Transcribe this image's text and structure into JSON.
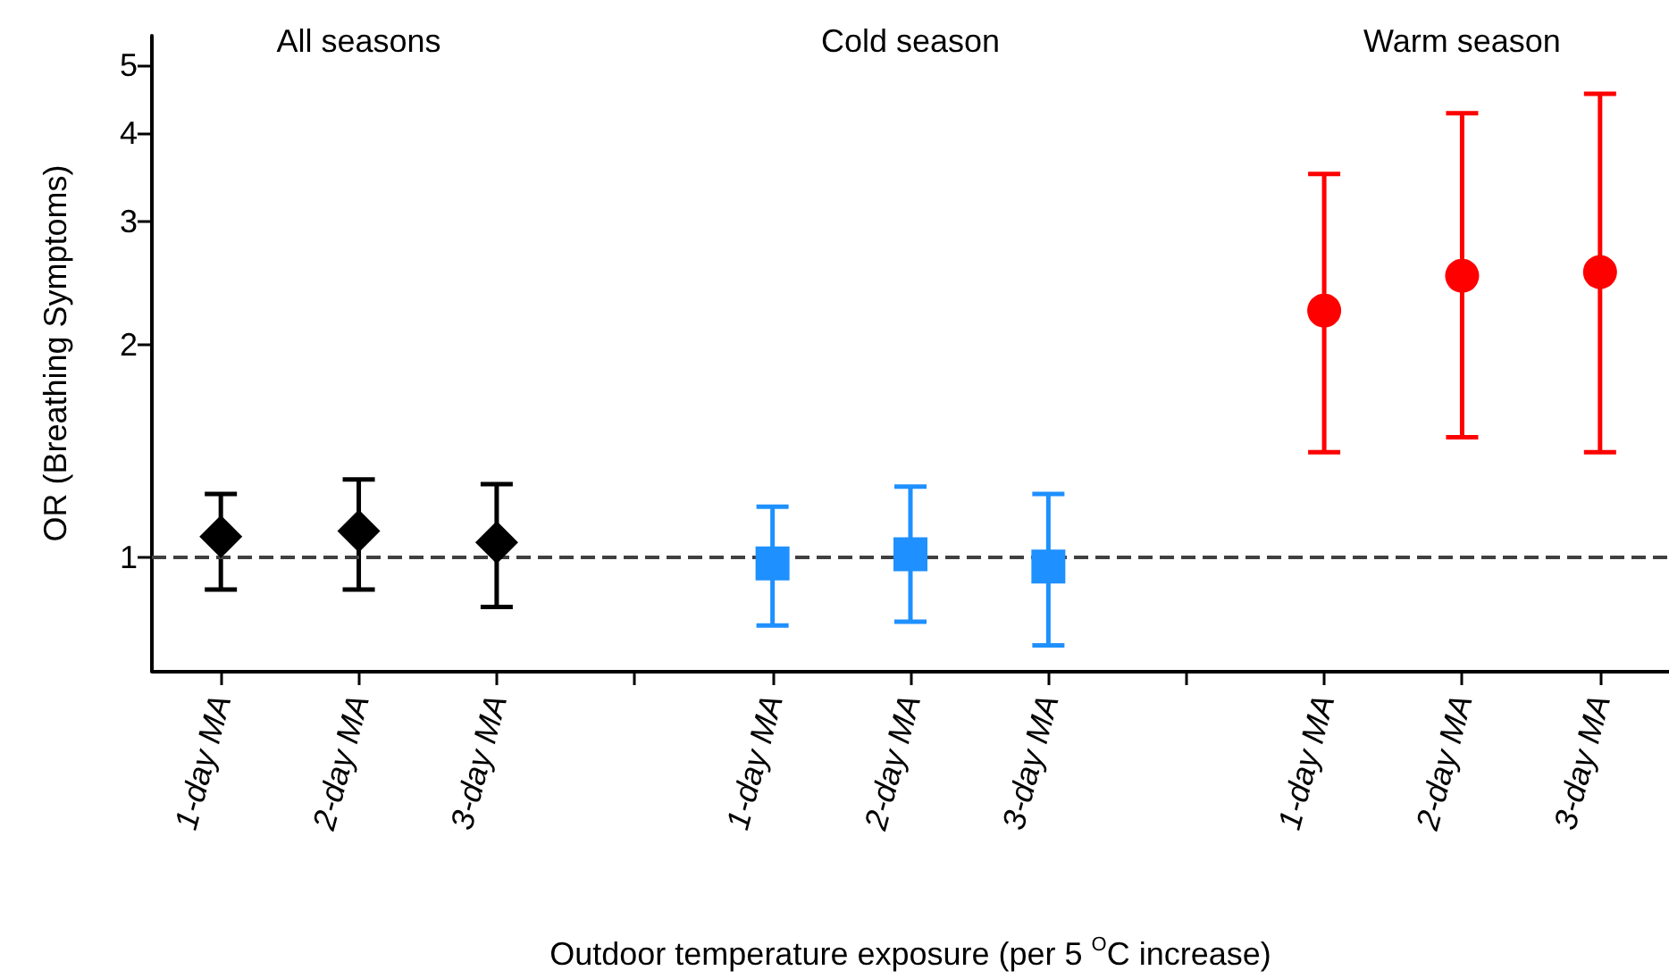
{
  "chart_data": {
    "type": "scatter",
    "xlabel": "Outdoor temperature exposure (per 5 $^{O}$C increase)",
    "ylabel": "OR (Breathing Symptoms)",
    "categories": [
      "1-day MA",
      "2-day MA",
      "3-day MA",
      null,
      "1-day MA",
      "2-day MA",
      "3-day MA",
      null,
      "1-day MA",
      "2-day MA",
      "3-day MA"
    ],
    "series": [
      {
        "color": "#000000",
        "marker": "diamond",
        "values": [
          1.07,
          1.09,
          1.05,
          null,
          null,
          null,
          null,
          null,
          null,
          null,
          null
        ],
        "errors": [
          [
            0.9,
            1.23
          ],
          [
            0.9,
            1.29
          ],
          [
            0.85,
            1.27
          ],
          null,
          null,
          null,
          null,
          null,
          null,
          null,
          null
        ]
      },
      {
        "color": "#1e90ff",
        "marker": "square",
        "values": [
          null,
          null,
          null,
          null,
          0.98,
          1.01,
          0.97,
          null,
          null,
          null,
          null
        ],
        "errors": [
          null,
          null,
          null,
          null,
          [
            0.8,
            1.18
          ],
          [
            0.81,
            1.26
          ],
          [
            0.75,
            1.23
          ],
          null,
          null,
          null,
          null
        ]
      },
      {
        "color": "#ff0000",
        "marker": "circle",
        "values": [
          null,
          null,
          null,
          null,
          null,
          null,
          null,
          null,
          2.24,
          2.51,
          2.54
        ],
        "errors": [
          null,
          null,
          null,
          null,
          null,
          null,
          null,
          null,
          [
            1.41,
            3.5
          ],
          [
            1.48,
            4.27
          ],
          [
            1.41,
            4.55
          ]
        ]
      }
    ],
    "annotations": [
      "All seasons",
      "Cold season",
      "Warm season"
    ],
    "log": "y",
    "ylim": [
      0.69,
      5.5
    ],
    "yticks": [
      1,
      2,
      3,
      4,
      5
    ],
    "grid": false,
    "ref_lines": [
      {
        "axis": "y",
        "value": 1,
        "color": "#404040",
        "line_style": "dashed"
      }
    ]
  }
}
